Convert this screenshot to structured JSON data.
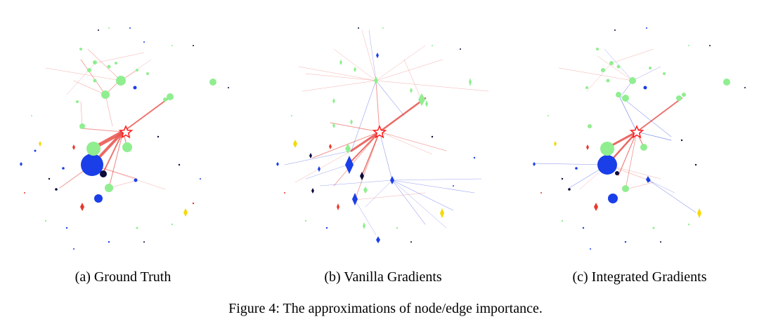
{
  "figure": {
    "caption": "Figure 4: The approximations of node/edge importance.",
    "panels": [
      {
        "id": "a",
        "caption": "(a) Ground Truth"
      },
      {
        "id": "b",
        "caption": "(b) Vanilla Gradients"
      },
      {
        "id": "c",
        "caption": "(c) Integrated Gradients"
      }
    ]
  },
  "legend_colors": {
    "positive_edge": "#e8504a",
    "negative_edge": "#3a4fe0",
    "green_node": "#90ee90",
    "blue_node": "#1a3fe8",
    "navy_node": "#0b0b3b",
    "red_node": "#e8382a",
    "yellow_node": "#f5d90a",
    "target_star": "#ff1a1a"
  }
}
